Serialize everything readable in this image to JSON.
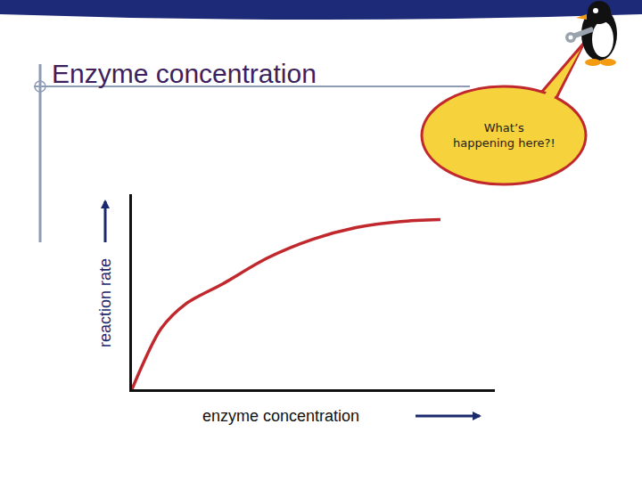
{
  "chart_data": {
    "type": "line",
    "title": "Enzyme concentration",
    "xlabel": "enzyme concentration",
    "ylabel": "reaction rate",
    "annotations": [
      "What’s\nhappening here?!"
    ],
    "x": [
      0,
      0.8,
      1.5,
      2.5,
      3.7,
      5,
      6.2,
      7.4,
      8.5
    ],
    "values": [
      0,
      3.1,
      4.4,
      5.4,
      6.7,
      7.7,
      8.3,
      8.6,
      8.7
    ],
    "color": "#c0282d",
    "xlim": [
      0,
      10
    ],
    "ylim": [
      0,
      10
    ],
    "grid": false,
    "tick_labels": false
  }
}
